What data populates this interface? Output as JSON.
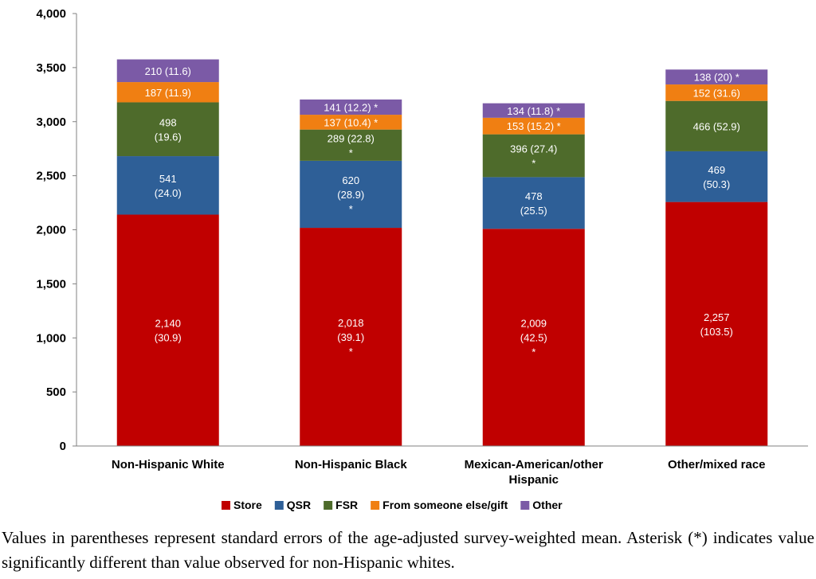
{
  "chart_data": {
    "type": "stacked-bar",
    "categories": [
      [
        "Non-Hispanic White"
      ],
      [
        "Non-Hispanic Black"
      ],
      [
        "Mexican-American/other",
        "Hispanic"
      ],
      [
        "Other/mixed race"
      ]
    ],
    "ylim": [
      0,
      4000
    ],
    "yticks": [
      0,
      500,
      1000,
      1500,
      2000,
      2500,
      3000,
      3500,
      4000
    ],
    "ytick_labels": [
      "0",
      "500",
      "1,000",
      "1,500",
      "2,000",
      "2,500",
      "3,000",
      "3,500",
      "4,000"
    ],
    "series": [
      {
        "name": "Store",
        "color": "#c00000",
        "values": [
          2140,
          2018,
          2009,
          2257
        ],
        "labels": [
          [
            "2,140",
            "(30.9)"
          ],
          [
            "2,018",
            "(39.1)",
            "*"
          ],
          [
            "2,009",
            "(42.5)",
            "*"
          ],
          [
            "2,257",
            "(103.5)"
          ]
        ]
      },
      {
        "name": "QSR",
        "color": "#2e5f97",
        "values": [
          541,
          620,
          478,
          469
        ],
        "labels": [
          [
            "541",
            "(24.0)"
          ],
          [
            "620",
            "(28.9)",
            "*"
          ],
          [
            "478",
            "(25.5)"
          ],
          [
            "469",
            "(50.3)"
          ]
        ]
      },
      {
        "name": "FSR",
        "color": "#4e6b2b",
        "values": [
          498,
          289,
          396,
          466
        ],
        "labels": [
          [
            "498",
            "(19.6)"
          ],
          [
            "289 (22.8)",
            "*"
          ],
          [
            "396 (27.4)",
            "*"
          ],
          [
            "466 (52.9)"
          ]
        ]
      },
      {
        "name": "From someone else/gift",
        "color": "#f07f12",
        "values": [
          187,
          137,
          153,
          152
        ],
        "labels": [
          [
            "187 (11.9)"
          ],
          [
            "137 (10.4) *"
          ],
          [
            "153 (15.2) *"
          ],
          [
            "152 (31.6)"
          ]
        ]
      },
      {
        "name": "Other",
        "color": "#7b5aa6",
        "values": [
          210,
          141,
          134,
          138
        ],
        "labels": [
          [
            "210 (11.6)"
          ],
          [
            "141 (12.2) *"
          ],
          [
            "134 (11.8) *"
          ],
          [
            "138 (20) *"
          ]
        ]
      }
    ]
  },
  "footnote": "Values in parentheses represent standard errors of the age-adjusted survey-weighted mean. Asterisk (*) indicates value significantly different than value observed for non-Hispanic whites."
}
